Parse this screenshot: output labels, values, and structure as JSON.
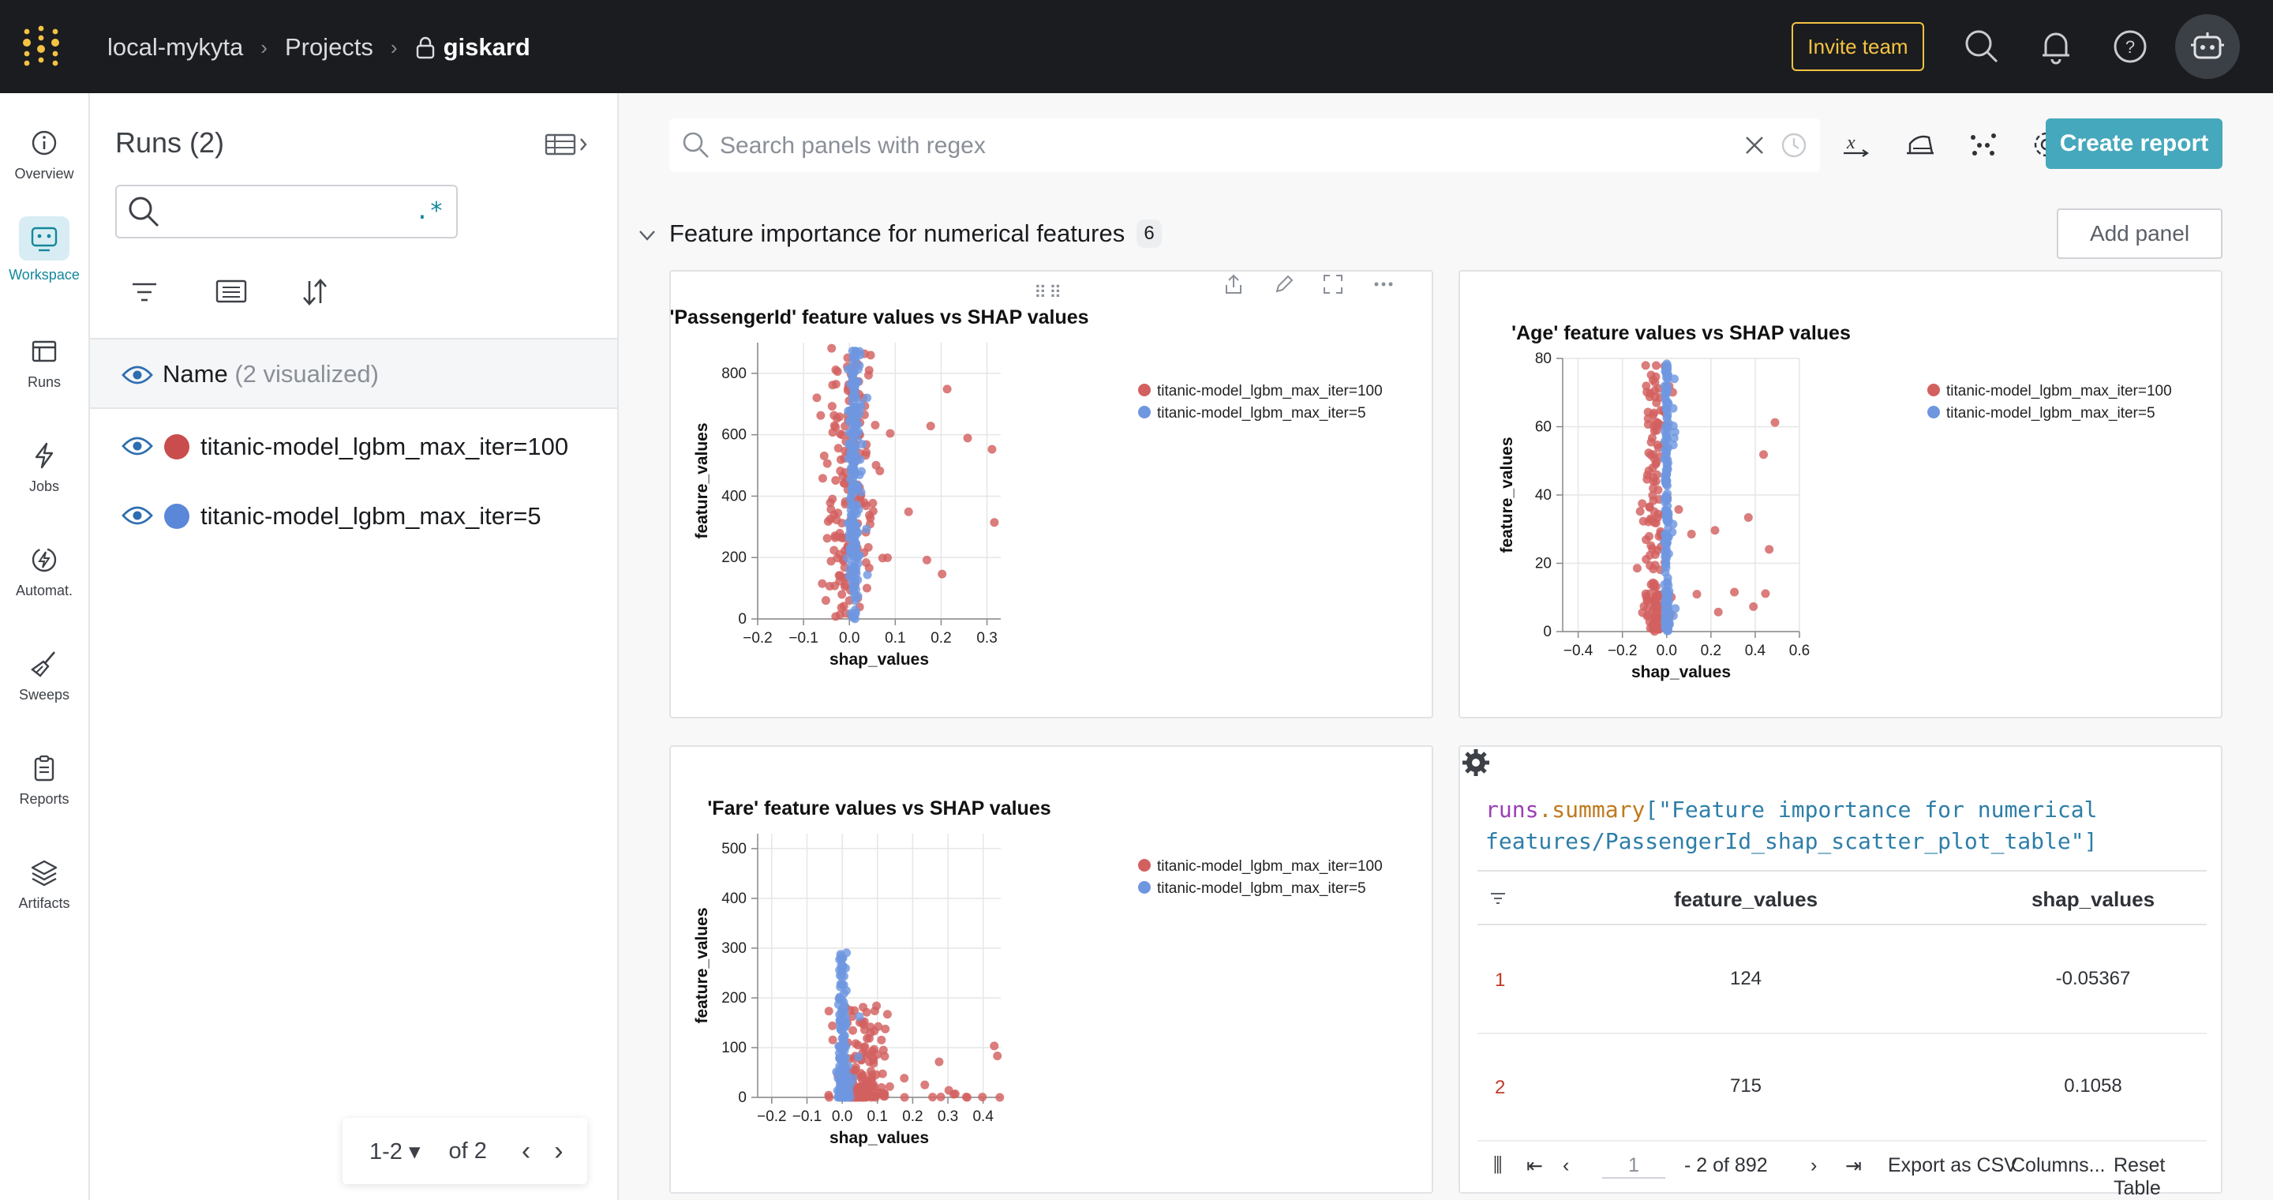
{
  "header": {
    "org": "local-mykyta",
    "projects_label": "Projects",
    "project": "giskard",
    "invite_label": "Invite team"
  },
  "nav": [
    {
      "label": "Overview",
      "icon": "info-icon"
    },
    {
      "label": "Workspace",
      "icon": "workspace-icon",
      "active": true
    },
    {
      "label": "Runs",
      "icon": "table-icon"
    },
    {
      "label": "Jobs",
      "icon": "bolt-icon"
    },
    {
      "label": "Automat.",
      "icon": "automation-icon"
    },
    {
      "label": "Sweeps",
      "icon": "broom-icon"
    },
    {
      "label": "Reports",
      "icon": "clipboard-icon"
    },
    {
      "label": "Artifacts",
      "icon": "layers-icon"
    }
  ],
  "runs_panel": {
    "title": "Runs (2)",
    "regex_symbol": ".*",
    "column_name": "Name",
    "column_suffix": "(2 visualized)",
    "runs": [
      {
        "name": "titanic-model_lgbm_max_iter=100",
        "color": "#c94d4d"
      },
      {
        "name": "titanic-model_lgbm_max_iter=5",
        "color": "#5b87d9"
      }
    ],
    "pager": {
      "range": "1-2",
      "of": "of 2"
    }
  },
  "workspace": {
    "search_placeholder": "Search panels with regex",
    "create_report": "Create report",
    "section_title": "Feature importance for numerical features",
    "section_count": "6",
    "add_panel": "Add panel"
  },
  "colors": {
    "run100": "#d2605f",
    "run5": "#6f97e0",
    "accent": "#46a8bc"
  },
  "chart_data": [
    {
      "type": "scatter",
      "title": "'PassengerId' feature values vs SHAP values",
      "xlabel": "shap_values",
      "ylabel": "feature_values",
      "xlim": [
        -0.2,
        0.33
      ],
      "ylim": [
        0,
        900
      ],
      "xticks": [
        -0.2,
        -0.1,
        0.0,
        0.1,
        0.2,
        0.3
      ],
      "yticks": [
        0,
        200,
        400,
        600,
        800
      ],
      "legend": "top-right",
      "series": [
        {
          "name": "titanic-model_lgbm_max_iter=100",
          "color": "#d2605f",
          "spread": 0.09,
          "center": 0.0,
          "tail": 0.32
        },
        {
          "name": "titanic-model_lgbm_max_iter=5",
          "color": "#6f97e0",
          "spread": 0.018,
          "center": 0.01,
          "tail": 0.03
        }
      ]
    },
    {
      "type": "scatter",
      "title": "'Age' feature values vs SHAP values",
      "xlabel": "shap_values",
      "ylabel": "feature_values",
      "xlim": [
        -0.47,
        0.6
      ],
      "ylim": [
        0,
        80
      ],
      "xticks": [
        -0.4,
        -0.2,
        0.0,
        0.2,
        0.4,
        0.6
      ],
      "yticks": [
        0,
        20,
        40,
        60,
        80
      ],
      "legend": "top-right",
      "series": [
        {
          "name": "titanic-model_lgbm_max_iter=100",
          "color": "#d2605f",
          "spread": 0.1,
          "center": -0.05,
          "tail": 0.55
        },
        {
          "name": "titanic-model_lgbm_max_iter=5",
          "color": "#6f97e0",
          "spread": 0.015,
          "center": 0.0,
          "tail": 0.04
        }
      ]
    },
    {
      "type": "scatter",
      "title": "'Fare' feature values vs SHAP values",
      "xlabel": "shap_values",
      "ylabel": "feature_values",
      "xlim": [
        -0.24,
        0.45
      ],
      "ylim": [
        0,
        530
      ],
      "xticks": [
        -0.2,
        -0.1,
        0.0,
        0.1,
        0.2,
        0.3,
        0.4
      ],
      "yticks": [
        0,
        100,
        200,
        300,
        400,
        500
      ],
      "legend": "top-right",
      "series": [
        {
          "name": "titanic-model_lgbm_max_iter=100",
          "color": "#d2605f",
          "spread": 0.12,
          "center": 0.05,
          "tail": 0.4
        },
        {
          "name": "titanic-model_lgbm_max_iter=5",
          "color": "#6f97e0",
          "spread": 0.02,
          "center": 0.0,
          "tail": 0.05
        }
      ]
    }
  ],
  "table_panel": {
    "code_prefix": "runs",
    "code_fn": ".summary",
    "code_line1": "[\"Feature importance for numerical",
    "code_line2": "features/PassengerId_shap_scatter_plot_table\"]",
    "col1": "feature_values",
    "col2": "shap_values",
    "rows": [
      {
        "idx": "1",
        "feature_values": "124",
        "shap_values": "-0.05367"
      },
      {
        "idx": "2",
        "feature_values": "715",
        "shap_values": "0.1058"
      }
    ],
    "page_input": "1",
    "page_info": "- 2 of 892",
    "export_csv": "Export as CSV",
    "columns": "Columns...",
    "reset": "Reset Table"
  }
}
